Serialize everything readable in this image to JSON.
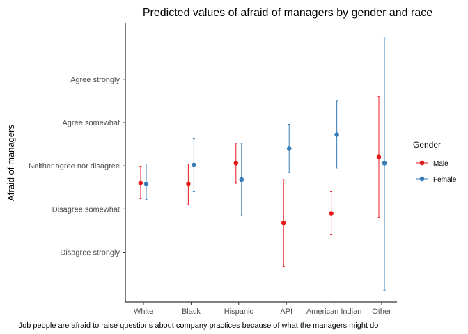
{
  "chart_data": {
    "type": "scatter",
    "title": "Predicted values of afraid of managers by gender and race",
    "xlabel": "Job people are afraid to raise questions about company practices because of what the managers might do",
    "ylabel": "Afraid of managers",
    "categories": [
      "White",
      "Black",
      "Hispanic",
      "API",
      "American Indian",
      "Other"
    ],
    "y_ticks": [
      {
        "value": 1,
        "label": "Disagree strongly"
      },
      {
        "value": 2,
        "label": "Disagree somewhat"
      },
      {
        "value": 3,
        "label": "Neither agree nor disagree"
      },
      {
        "value": 4,
        "label": "Agree somewhat"
      },
      {
        "value": 5,
        "label": "Agree strongly"
      }
    ],
    "ylim": [
      -0.15,
      6.3
    ],
    "grid": false,
    "legend": {
      "title": "Gender",
      "position": "right"
    },
    "series": [
      {
        "name": "Male",
        "color": "#e41a1c",
        "values": [
          2.6,
          2.58,
          3.06,
          1.68,
          1.9,
          3.2
        ],
        "lower": [
          2.24,
          2.1,
          2.6,
          0.68,
          1.4,
          1.8
        ],
        "upper": [
          2.98,
          3.04,
          3.52,
          2.68,
          2.4,
          4.6
        ]
      },
      {
        "name": "Female",
        "color": "#377eb8",
        "values": [
          2.58,
          3.02,
          2.68,
          3.4,
          3.72,
          3.06
        ],
        "lower": [
          2.22,
          2.4,
          1.84,
          2.84,
          2.94,
          0.12
        ],
        "upper": [
          3.04,
          3.62,
          3.52,
          3.96,
          4.5,
          5.96
        ]
      }
    ]
  }
}
